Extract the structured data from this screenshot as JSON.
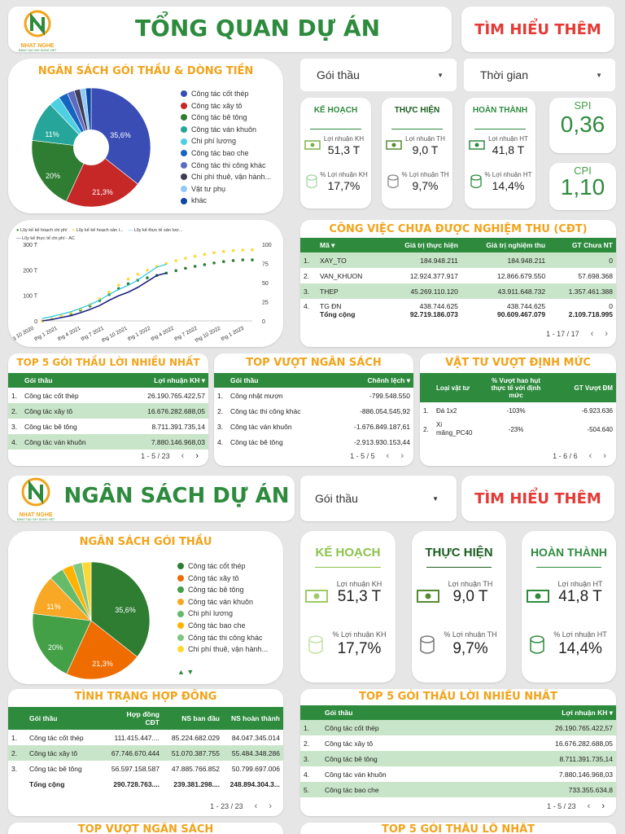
{
  "section1": {
    "title": "TỔNG QUAN DỰ ÁN",
    "learn_more": "TÌM HIỂU THÊM",
    "logo_text": "NHAT NGHE",
    "logo_sub": "ĐÀNG TẠO XÂY DỰNG VIỆT",
    "budget_title": "NGÂN SÁCH GÓI THẦU & DÒNG TIỀN",
    "legend": [
      "Công tác cốt thép",
      "Công tác xây tô",
      "Công tác bê tông",
      "Công tác ván khuôn",
      "Chi phí lương",
      "Công tác bao che",
      "Công tác thi công khác",
      "Chi phí thuê, vận hành...",
      "Vật tư phụ",
      "khác"
    ],
    "legend_colors": [
      "#3a4db5",
      "#c62828",
      "#2e7d32",
      "#26a69a",
      "#4dd0e1",
      "#1565c0",
      "#5c6bc0",
      "#3f3d56",
      "#90caf9",
      "#0d47a1"
    ],
    "pie_labels": [
      "35,6%",
      "21,3%",
      "20%",
      "11%"
    ],
    "filter_goithau": "Gói thầu",
    "filter_thoigian": "Thời gian",
    "kpis": [
      {
        "title": "KẾ HOẠCH",
        "l1": "Lợi nhuận KH",
        "v1": "51,3 T",
        "l2": "% Lợi nhuận KH",
        "v2": "17,7%"
      },
      {
        "title": "THỰC HIỆN",
        "l1": "Lợi nhuận TH",
        "v1": "9,0 T",
        "l2": "% Lợi nhuận TH",
        "v2": "9,7%"
      },
      {
        "title": "HOÀN THÀNH",
        "l1": "Lợi nhuận HT",
        "v1": "41,8 T",
        "l2": "% Lợi nhuận HT",
        "v2": "14,4%"
      }
    ],
    "spi_label": "SPI",
    "spi_value": "0,36",
    "cpi_label": "CPI",
    "cpi_value": "1,10"
  },
  "chart_data": {
    "type": "line",
    "legend": [
      "Lũy kế kế hoạch chi phí",
      "Lũy kế kế hoạch sản l...",
      "Lũy kế thực tế sản lượ...",
      "Lũy kế thực tế chi phí - AC"
    ],
    "x_ticks": [
      "thg 10 2020",
      "thg 1 2021",
      "thg 4 2021",
      "thg 7 2021",
      "thg 10 2021",
      "thg 1 2022",
      "thg 4 2022",
      "thg 7 2022",
      "thg 10 2022",
      "thg 1 2023"
    ],
    "y_left_ticks": [
      "300 T",
      "200 T",
      "100 T",
      "0"
    ],
    "y_right_ticks": [
      "100",
      "75",
      "50",
      "25",
      "0"
    ],
    "series": [
      {
        "name": "Lũy kế kế hoạch chi phí",
        "values": [
          0,
          8,
          18,
          30,
          45,
          62,
          85,
          110,
          135,
          155,
          170,
          180,
          190,
          200,
          210,
          220,
          228,
          235,
          242,
          248,
          252,
          255,
          255
        ]
      },
      {
        "name": "Lũy kế kế hoạch sản lượng",
        "values": [
          0,
          8,
          20,
          34,
          50,
          68,
          92,
          120,
          150,
          175,
          195,
          212,
          228,
          240,
          252,
          262,
          270,
          278,
          285,
          290,
          294,
          296,
          297
        ]
      },
      {
        "name": "Lũy kế thực tế chi phí - AC",
        "values": [
          0,
          6,
          14,
          22,
          34,
          48,
          64,
          86,
          105,
          120,
          140,
          165,
          190,
          200
        ]
      }
    ]
  },
  "cdt": {
    "title": "CÔNG VIỆC CHƯA ĐƯỢC NGHIỆM THU (CĐT)",
    "headers": [
      "Mã ▾",
      "Giá trị thực hiện",
      "Giá trị nghiệm thu",
      "GT Chưa NT"
    ],
    "rows": [
      [
        "1.",
        "XAY_TO",
        "184.948.211",
        "184.948.211",
        "0"
      ],
      [
        "2.",
        "VAN_KHUON",
        "12.924.377.917",
        "12.866.679.550",
        "57.698.368"
      ],
      [
        "3.",
        "THEP",
        "45.269.110.120",
        "43.911.648.732",
        "1.357.461.388"
      ],
      [
        "4.",
        "TG ĐN",
        "438.744.625",
        "438.744.625",
        "0"
      ]
    ],
    "total": [
      "Tổng cộng",
      "92.719.186.073",
      "90.609.467.079",
      "2.109.718.995"
    ],
    "pager": "1 - 17 / 17"
  },
  "top5": {
    "title": "TOP 5 GÓI THẦU LỜI NHIỀU NHẤT",
    "headers": [
      "Gói thầu",
      "Lợi nhuận KH ▾"
    ],
    "rows": [
      [
        "1.",
        "Công tác cốt thép",
        "26.190.765.422,57"
      ],
      [
        "2.",
        "Công tác xây tô",
        "16.676.282.688,05"
      ],
      [
        "3.",
        "Công tác bê tông",
        "8.711.391.735,14"
      ],
      [
        "4.",
        "Công tác ván khuôn",
        "7.880.146.968,03"
      ]
    ],
    "pager": "1 - 5 / 23"
  },
  "over": {
    "title": "TOP VƯỢT NGÂN SÁCH",
    "headers": [
      "Gói thầu",
      "Chênh lệch ▾"
    ],
    "rows": [
      [
        "1.",
        "Công nhật mượn",
        "-799.548.550"
      ],
      [
        "2.",
        "Công tác thi công khác",
        "-886.054.545,92"
      ],
      [
        "3.",
        "Công tác ván khuôn",
        "-1.676.849.187,61"
      ],
      [
        "4.",
        "Công tác bê tông",
        "-2.913.930.153,44"
      ]
    ],
    "pager": "1 - 5 / 5"
  },
  "vattu": {
    "title": "VẬT TƯ VƯỢT ĐỊNH MỨC",
    "headers": [
      "Loại vật tư",
      "% Vượt hao hụt thực tế với định mức",
      "GT Vượt ĐM"
    ],
    "rows": [
      [
        "1.",
        "Đá 1x2",
        "-103%",
        "-6.923.636"
      ],
      [
        "2.",
        "Xi măng_PC40",
        "-23%",
        "-504.640"
      ]
    ],
    "pager": "1 - 6 / 6"
  },
  "section2": {
    "title": "NGÂN SÁCH DỰ ÁN",
    "filter_goithau": "Gói thầu",
    "learn_more": "TÌM HIỂU THÊM",
    "budget_title": "NGÂN SÁCH GÓI THẦU",
    "legend": [
      "Công tác cốt thép",
      "Công tác xây tô",
      "Công tác bê tông",
      "Công tác ván khuôn",
      "Chi phí lương",
      "Công tác bao che",
      "Công tác thi công khác",
      "Chi phí thuê, vận hành..."
    ],
    "legend_colors": [
      "#2e7d32",
      "#ef6c00",
      "#43a047",
      "#f9a825",
      "#66bb6a",
      "#ffb300",
      "#81c784",
      "#fdd835"
    ],
    "pie_labels": [
      "35,6%",
      "21,3%",
      "20%",
      "11%"
    ],
    "kpis": [
      {
        "title": "KẾ HOẠCH",
        "l1": "Lợi nhuận KH",
        "v1": "51,3 T",
        "l2": "% Lợi nhuận KH",
        "v2": "17,7%"
      },
      {
        "title": "THỰC HIỆN",
        "l1": "Lợi nhuận TH",
        "v1": "9,0 T",
        "l2": "% Lợi nhuận TH",
        "v2": "9,7%"
      },
      {
        "title": "HOÀN THÀNH",
        "l1": "Lợi nhuận HT",
        "v1": "41,8 T",
        "l2": "% Lợi nhuận HT",
        "v2": "14,4%"
      }
    ]
  },
  "contract": {
    "title": "TÌNH TRẠNG HỢP ĐỒNG",
    "headers": [
      "Gói thầu",
      "Hợp đồng CĐT",
      "NS ban đầu",
      "NS hoàn thành"
    ],
    "rows": [
      [
        "1.",
        "Công tác cốt thép",
        "111.415.447....",
        "85.224.682.029",
        "84.047.345.014"
      ],
      [
        "2.",
        "Công tác xây tô",
        "67.746.670.444",
        "51.070.387.755",
        "55.484.348.286"
      ],
      [
        "3.",
        "Công tác bê tông",
        "56.597.158.587",
        "47.885.766.852",
        "50.799.697.006"
      ]
    ],
    "total": [
      "Tổng cộng",
      "290.728.763....",
      "239.381.298....",
      "248.894.304.3..."
    ],
    "pager": "1 - 23 / 23"
  },
  "top5b": {
    "title": "TOP 5 GÓI THẦU LỜI NHIỀU NHẤT",
    "headers": [
      "Gói thầu",
      "Lợi nhuận KH ▾"
    ],
    "rows": [
      [
        "1.",
        "Công tác cốt thép",
        "26.190.765.422,57"
      ],
      [
        "2.",
        "Công tác xây tô",
        "16.676.282.688,05"
      ],
      [
        "3.",
        "Công tác bê tông",
        "8.711.391.735,14"
      ],
      [
        "4.",
        "Công tác ván khuôn",
        "7.880.146.968,03"
      ],
      [
        "5.",
        "Công tác bao che",
        "733.355.634,8"
      ]
    ],
    "pager": "1 - 5 / 23"
  },
  "bottom": {
    "left_title": "TOP VƯỢT NGÂN SÁCH",
    "right_title": "TOP 5 GÓI THẦU LỖ NHẤT"
  }
}
